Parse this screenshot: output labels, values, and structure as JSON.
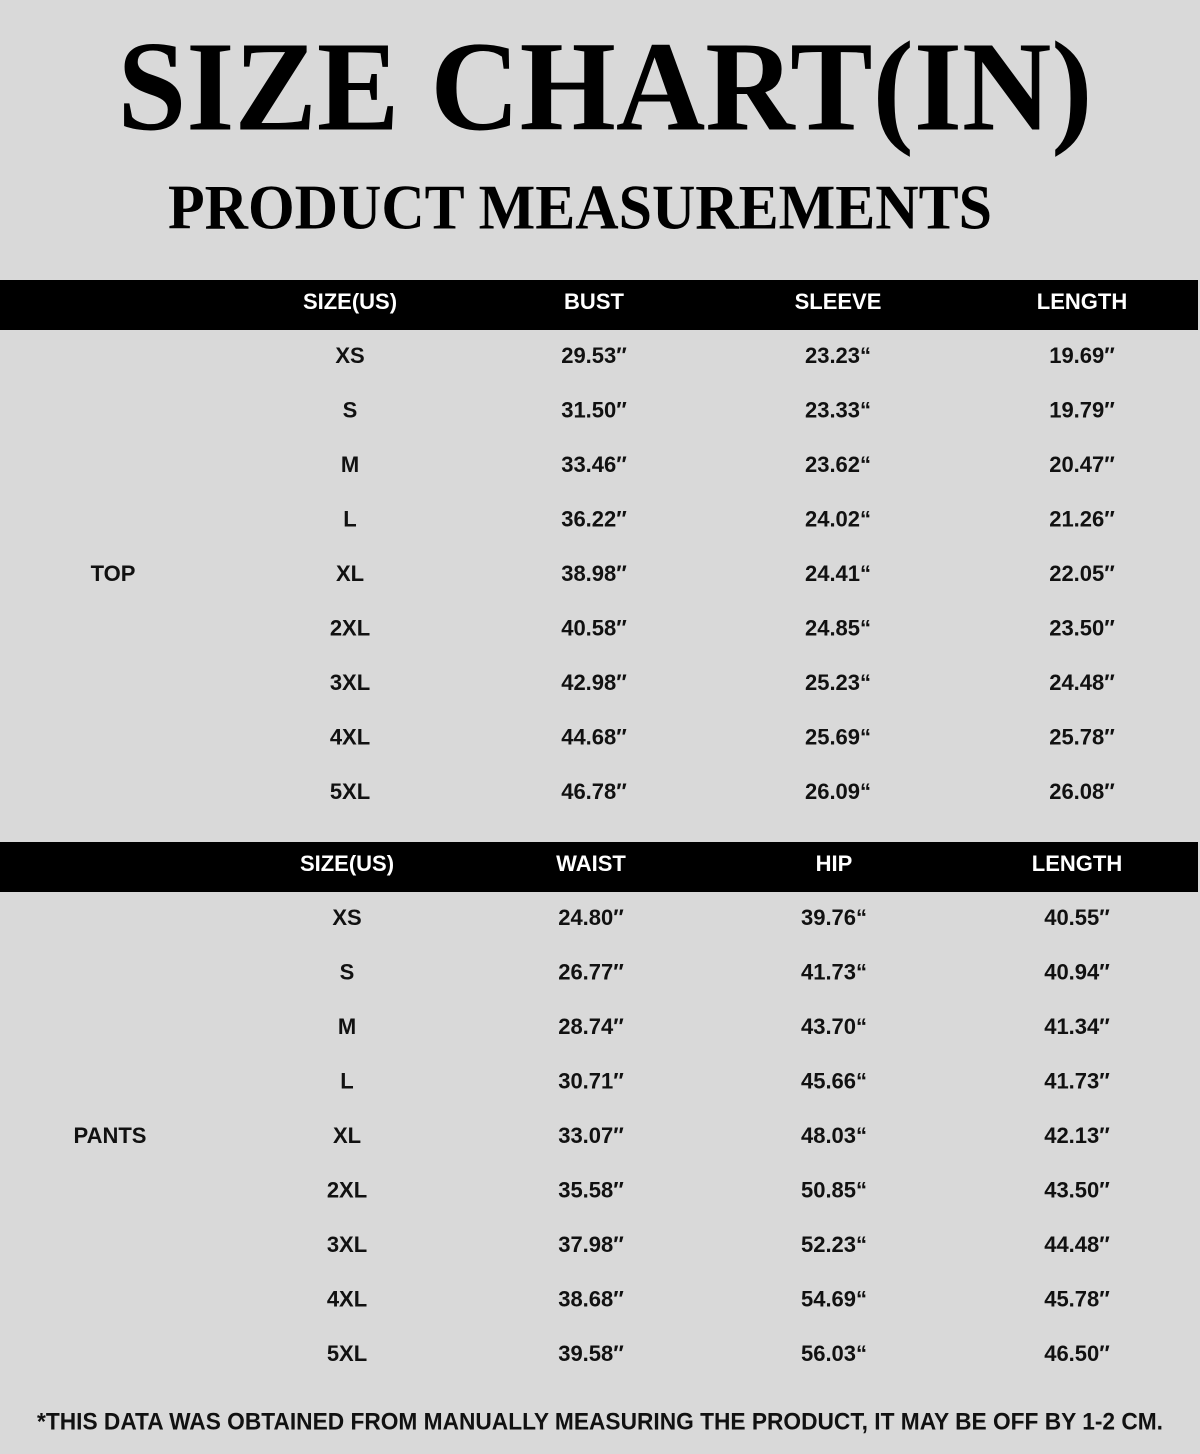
{
  "header": {
    "title": "SIZE CHART(IN)",
    "subtitle": "PRODUCT MEASUREMENTS"
  },
  "tables": [
    {
      "group": "TOP",
      "columns": [
        "SIZE(US)",
        "BUST",
        "SLEEVE",
        "LENGTH"
      ],
      "rows": [
        [
          "XS",
          "29.53″",
          "23.23“",
          "19.69″"
        ],
        [
          "S",
          "31.50″",
          "23.33“",
          "19.79″"
        ],
        [
          "M",
          "33.46″",
          "23.62“",
          "20.47″"
        ],
        [
          "L",
          "36.22″",
          "24.02“",
          "21.26″"
        ],
        [
          "XL",
          "38.98″",
          "24.41“",
          "22.05″"
        ],
        [
          "2XL",
          "40.58″",
          "24.85“",
          "23.50″"
        ],
        [
          "3XL",
          "42.98″",
          "25.23“",
          "24.48″"
        ],
        [
          "4XL",
          "44.68″",
          "25.69“",
          "25.78″"
        ],
        [
          "5XL",
          "46.78″",
          "26.09“",
          "26.08″"
        ]
      ]
    },
    {
      "group": "PANTS",
      "columns": [
        "SIZE(US)",
        "WAIST",
        "HIP",
        "LENGTH"
      ],
      "rows": [
        [
          "XS",
          "24.80″",
          "39.76“",
          "40.55″"
        ],
        [
          "S",
          "26.77″",
          "41.73“",
          "40.94″"
        ],
        [
          "M",
          "28.74″",
          "43.70“",
          "41.34″"
        ],
        [
          "L",
          "30.71″",
          "45.66“",
          "41.73″"
        ],
        [
          "XL",
          "33.07″",
          "48.03“",
          "42.13″"
        ],
        [
          "2XL",
          "35.58″",
          "50.85“",
          "43.50″"
        ],
        [
          "3XL",
          "37.98″",
          "52.23“",
          "44.48″"
        ],
        [
          "4XL",
          "38.68″",
          "54.69“",
          "45.78″"
        ],
        [
          "5XL",
          "39.58″",
          "56.03“",
          "46.50″"
        ]
      ]
    }
  ],
  "footnote": "*THIS DATA WAS OBTAINED FROM MANUALLY MEASURING THE PRODUCT, IT MAY BE OFF BY 1-2 CM."
}
